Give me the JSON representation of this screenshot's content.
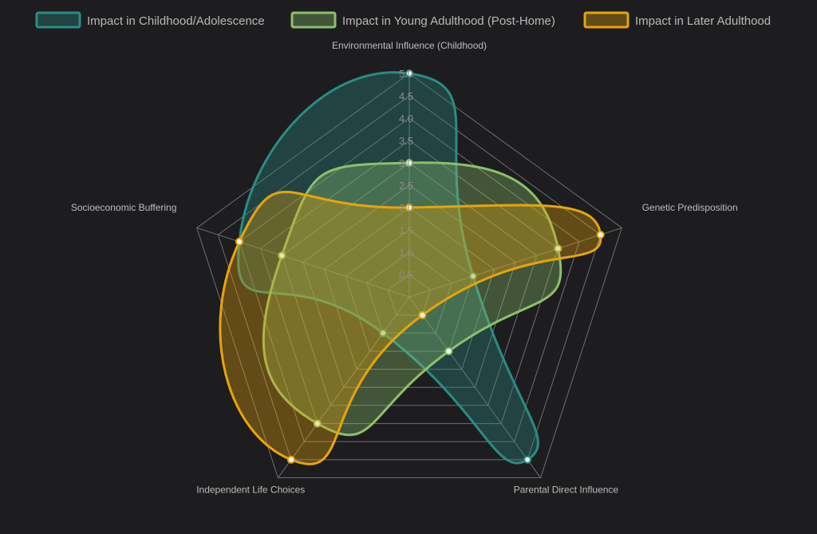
{
  "chart_data": {
    "type": "radar",
    "axes": [
      "Environmental Influence (Childhood)",
      "Genetic Predisposition",
      "Parental Direct Influence",
      "Independent Life Choices",
      "Socioeconomic Buffering"
    ],
    "rlim": [
      0,
      5
    ],
    "ticks": [
      "0.5",
      "1.0",
      "1.5",
      "2.0",
      "2.5",
      "3.0",
      "3.5",
      "4.0",
      "4.5",
      "5.0"
    ],
    "tick_values": [
      0.5,
      1.0,
      1.5,
      2.0,
      2.5,
      3.0,
      3.5,
      4.0,
      4.5,
      5.0
    ],
    "grid": true,
    "legend_position": "top",
    "series": [
      {
        "name": "Impact in Childhood/Adolescence",
        "values": [
          5.0,
          1.5,
          4.5,
          1.0,
          4.0
        ],
        "line_color": "#2a8c84",
        "fill_color": "rgba(42,140,132,0.35)"
      },
      {
        "name": "Impact in Young Adulthood (Post-Home)",
        "values": [
          3.0,
          3.5,
          1.5,
          3.5,
          3.0
        ],
        "line_color": "#8cc06b",
        "fill_color": "rgba(140,192,107,0.35)"
      },
      {
        "name": "Impact in Later Adulthood",
        "values": [
          2.0,
          4.5,
          0.5,
          4.5,
          4.0
        ],
        "line_color": "#e8a40a",
        "fill_color": "rgba(232,164,10,0.35)"
      }
    ]
  }
}
